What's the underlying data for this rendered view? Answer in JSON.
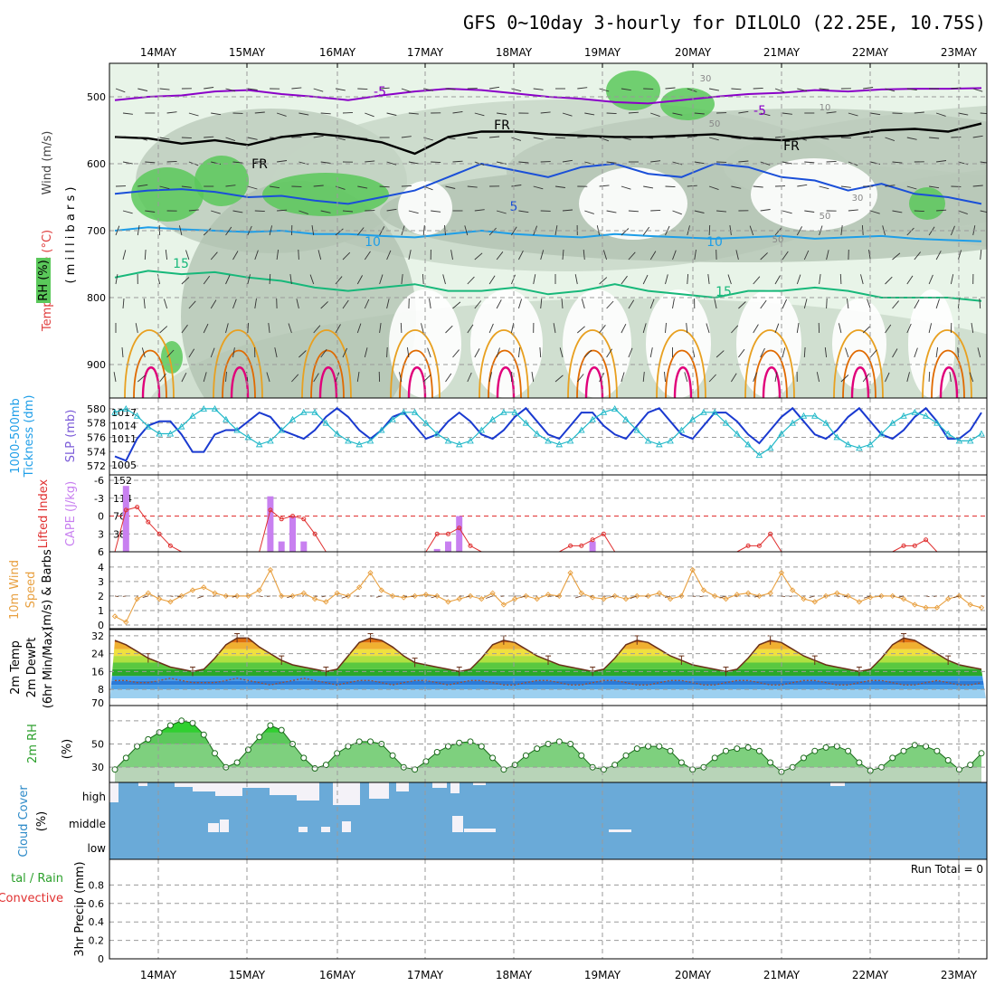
{
  "title": "GFS 0~10day 3-hourly for DILOLO (22.25E, 10.75S)",
  "date_labels": [
    "14MAY",
    "15MAY",
    "16MAY",
    "17MAY",
    "18MAY",
    "19MAY",
    "20MAY",
    "21MAY",
    "22MAY",
    "23MAY"
  ],
  "colors": {
    "purple": "#8a00c8",
    "black": "#000000",
    "blue": "#1a4fd8",
    "skyblue": "#1e9ee8",
    "green_t": "#17b87a",
    "orange": "#e8a020",
    "dorange": "#e06a00",
    "magenta": "#e0007a",
    "rh_light": "#e8f4e8",
    "rh_mid": "#b8c8b8",
    "rh_green": "#5ac85a",
    "cloud": "#6aaad8",
    "cape": "#c880f0",
    "li": "#e03030",
    "wind10": "#e8a040",
    "slp": "#1a3ad0",
    "thick": "#20b8c8",
    "rh2m": "#5cc85c"
  },
  "chart_data": [
    {
      "panel": "upper_air",
      "type": "area",
      "ylabel": "(millibars)",
      "side_labels": [
        "Wind (m/s)",
        "Temperature (°C)",
        "RH (%)"
      ],
      "y_ticks": [
        500,
        600,
        700,
        800,
        900
      ],
      "ylim": [
        450,
        950
      ],
      "contour_labels": {
        "temp_minus5": "-5",
        "freezing": "FR",
        "temp_5": "5",
        "temp_10": "10",
        "temp_15": "15",
        "rh_30": "30",
        "rh_50": "50",
        "rh_10": "10"
      },
      "series": [
        {
          "name": "-5C isotherm",
          "level_mb": [
            505,
            500,
            498,
            492,
            490,
            496,
            500,
            505,
            498,
            492,
            488,
            490,
            495,
            500,
            503,
            508,
            510,
            505,
            500,
            496,
            494,
            490,
            492,
            489,
            488,
            488,
            487
          ]
        },
        {
          "name": "FR isotherm",
          "level_mb": [
            560,
            562,
            570,
            565,
            572,
            560,
            555,
            560,
            568,
            585,
            560,
            552,
            552,
            556,
            558,
            560,
            560,
            558,
            556,
            562,
            565,
            560,
            558,
            550,
            548,
            552,
            540
          ]
        },
        {
          "name": "5C isotherm",
          "level_mb": [
            645,
            640,
            638,
            642,
            650,
            648,
            655,
            660,
            650,
            640,
            620,
            600,
            610,
            620,
            605,
            600,
            615,
            620,
            600,
            605,
            620,
            625,
            640,
            630,
            645,
            650,
            660
          ]
        },
        {
          "name": "10C isotherm",
          "level_mb": [
            700,
            695,
            698,
            700,
            702,
            700,
            705,
            705,
            708,
            710,
            705,
            700,
            705,
            708,
            710,
            705,
            708,
            710,
            712,
            710,
            708,
            712,
            710,
            708,
            712,
            714,
            716
          ]
        },
        {
          "name": "15C isotherm",
          "level_mb": [
            770,
            760,
            765,
            762,
            770,
            775,
            785,
            790,
            785,
            780,
            790,
            790,
            785,
            795,
            790,
            780,
            790,
            795,
            800,
            790,
            790,
            785,
            790,
            800,
            800,
            800,
            805
          ]
        }
      ]
    },
    {
      "panel": "slp_thickness",
      "type": "line",
      "ylabel": "1000-500mb Thickness (dm)",
      "y2label": "SLP (mb)",
      "y_ticks_left": [
        572,
        574,
        576,
        578,
        580
      ],
      "y_ticks_right": [
        1005,
        1011,
        1014,
        1017
      ],
      "series": [
        {
          "name": "SLP",
          "values": [
            1007,
            1006,
            1011,
            1014,
            1015,
            1015,
            1012,
            1008,
            1008,
            1012,
            1013,
            1013,
            1015,
            1017,
            1016,
            1013,
            1012,
            1011,
            1013,
            1016,
            1018,
            1016,
            1013,
            1011,
            1013,
            1016,
            1017,
            1014,
            1011,
            1012,
            1015,
            1017,
            1015,
            1012,
            1011,
            1013,
            1016,
            1018,
            1015,
            1012,
            1011,
            1014,
            1017,
            1017,
            1014,
            1012,
            1011,
            1014,
            1017,
            1018,
            1015,
            1012,
            1011,
            1014,
            1017,
            1017,
            1015,
            1012,
            1010,
            1013,
            1016,
            1018,
            1015,
            1012,
            1011,
            1013,
            1016,
            1018,
            1015,
            1012,
            1011,
            1013,
            1016,
            1018,
            1015,
            1011,
            1011,
            1013,
            1017
          ]
        },
        {
          "name": "Thickness",
          "values": [
            579.5,
            580,
            579,
            577.5,
            576.5,
            576.5,
            577.5,
            579,
            580,
            580,
            578.5,
            577,
            576,
            575,
            575.5,
            577,
            578.5,
            579.5,
            579.5,
            578,
            576.5,
            575.5,
            575,
            575.5,
            577,
            578.5,
            579.5,
            579.5,
            578,
            576.5,
            575.5,
            575,
            575.5,
            577,
            578.5,
            579.5,
            579.5,
            578,
            576.5,
            575.5,
            575,
            575.5,
            577,
            578.5,
            579.5,
            580,
            578.5,
            577,
            575.5,
            575,
            575.5,
            577,
            578.5,
            579.5,
            579.5,
            578,
            576.5,
            575,
            573.5,
            574.5,
            576.5,
            578,
            579,
            579,
            578,
            576,
            575,
            574.5,
            575,
            576.5,
            578,
            579,
            579.5,
            579,
            578,
            576.5,
            575.5,
            575.5,
            576.5
          ]
        }
      ]
    },
    {
      "panel": "li_cape",
      "type": "bar",
      "ylabel": "Lifted Index",
      "y2label": "CAPE (J/kg)",
      "y_ticks_left": [
        -6,
        -3,
        0,
        3,
        6
      ],
      "y_ticks_right": [
        38,
        76,
        114,
        152
      ],
      "cape_values": [
        0,
        140,
        0,
        0,
        0,
        0,
        0,
        0,
        0,
        0,
        0,
        0,
        0,
        0,
        118,
        22,
        76,
        22,
        0,
        0,
        0,
        0,
        0,
        0,
        0,
        0,
        0,
        0,
        0,
        6,
        22,
        76,
        0,
        0,
        0,
        0,
        0,
        0,
        0,
        0,
        0,
        0,
        0,
        22,
        0,
        0,
        0,
        0,
        0,
        0,
        0,
        0,
        0,
        0,
        0,
        0,
        0,
        0,
        0,
        0,
        0,
        0,
        0,
        0,
        0,
        0,
        0,
        0,
        0,
        0,
        0,
        0,
        0,
        0,
        0,
        0,
        0,
        0,
        0
      ],
      "li_values": [
        6,
        -1,
        -1.5,
        1,
        3,
        5,
        6,
        6,
        6,
        6,
        6,
        6,
        6,
        6,
        -1,
        0.5,
        0,
        0.5,
        3,
        6,
        6,
        6,
        6,
        6,
        6,
        6,
        6,
        6,
        6,
        3,
        3,
        2,
        5,
        6,
        6,
        6,
        6,
        6,
        6,
        6,
        6,
        5,
        5,
        4,
        3,
        6,
        6,
        6,
        6,
        6,
        6,
        6,
        6,
        6,
        6,
        6,
        6,
        5,
        5,
        3,
        6,
        6,
        6,
        6,
        6,
        6,
        6,
        6,
        6,
        6,
        6,
        5,
        5,
        4,
        6,
        6,
        6,
        6,
        6
      ]
    },
    {
      "panel": "wind10m",
      "type": "line",
      "ylabel": "10m Wind Speed (m/s) & Barbs",
      "y_ticks": [
        0,
        1,
        2,
        3,
        4
      ],
      "ylim": [
        0,
        5
      ],
      "values": [
        0.6,
        0.2,
        1.8,
        2.2,
        1.8,
        1.6,
        2.0,
        2.4,
        2.6,
        2.2,
        2.0,
        2.0,
        2.0,
        2.4,
        3.8,
        2.0,
        2.0,
        2.2,
        1.8,
        1.6,
        2.2,
        2.0,
        2.6,
        3.6,
        2.4,
        2.0,
        1.9,
        2.0,
        2.1,
        2.0,
        1.6,
        1.8,
        2.0,
        1.8,
        2.2,
        1.4,
        1.8,
        2.0,
        1.8,
        2.1,
        2.0,
        3.6,
        2.2,
        1.9,
        1.8,
        2.0,
        1.8,
        2.0,
        2.0,
        2.2,
        1.8,
        2.0,
        3.8,
        2.4,
        2.0,
        1.8,
        2.1,
        2.2,
        2.0,
        2.2,
        3.6,
        2.4,
        1.8,
        1.6,
        2.0,
        2.2,
        2.0,
        1.6,
        1.9,
        2.0,
        2.0,
        1.8,
        1.4,
        1.2,
        1.2,
        1.8,
        2.0,
        1.4,
        1.2
      ]
    },
    {
      "panel": "temp2m",
      "type": "area",
      "ylabel": "2m Temp 2m DewPt (6hr Min/Max)",
      "y_ticks": [
        8,
        16,
        24,
        32
      ],
      "extra_tick": "70",
      "temp_values": [
        30,
        28,
        25,
        22,
        20,
        18,
        17,
        16,
        17,
        22,
        28,
        31,
        31,
        27,
        24,
        21,
        19,
        18,
        17,
        16,
        17,
        23,
        29,
        31,
        30,
        27,
        23,
        20,
        19,
        18,
        17,
        16,
        17,
        22,
        28,
        30,
        29,
        26,
        23,
        21,
        19,
        18,
        17,
        16,
        17,
        22,
        28,
        30,
        29,
        26,
        23,
        21,
        19,
        18,
        17,
        16,
        17,
        22,
        28,
        30,
        29,
        26,
        23,
        21,
        19,
        18,
        17,
        16,
        17,
        22,
        28,
        31,
        30,
        27,
        24,
        21,
        19,
        18,
        17
      ],
      "dew_values": [
        12,
        12,
        11,
        11,
        12,
        13,
        12,
        11,
        11,
        11,
        12,
        13,
        12,
        11,
        10,
        11,
        12,
        13,
        12,
        11,
        10,
        11,
        12,
        12,
        11,
        10,
        11,
        12,
        12,
        11,
        10,
        11,
        12,
        12,
        11,
        10,
        10,
        11,
        12,
        12,
        11,
        10,
        10,
        11,
        12,
        12,
        11,
        10,
        10,
        11,
        12,
        12,
        11,
        10,
        10,
        11,
        12,
        12,
        11,
        10,
        10,
        11,
        12,
        12,
        11,
        10,
        10,
        11,
        12,
        12,
        11,
        10,
        10,
        11,
        12,
        11,
        10,
        10,
        11
      ]
    },
    {
      "panel": "rh2m",
      "type": "area",
      "ylabel": "2m RH (%)",
      "y_ticks": [
        30,
        50,
        70
      ],
      "ylim": [
        20,
        80
      ],
      "values": [
        28,
        38,
        48,
        54,
        60,
        66,
        70,
        68,
        58,
        42,
        30,
        34,
        45,
        56,
        66,
        62,
        50,
        38,
        29,
        32,
        42,
        48,
        52,
        52,
        50,
        40,
        30,
        28,
        35,
        43,
        48,
        51,
        52,
        48,
        38,
        28,
        32,
        40,
        46,
        50,
        52,
        50,
        40,
        30,
        28,
        32,
        40,
        46,
        48,
        48,
        44,
        34,
        28,
        30,
        38,
        44,
        46,
        47,
        44,
        34,
        26,
        30,
        38,
        44,
        47,
        48,
        44,
        34,
        27,
        30,
        38,
        44,
        49,
        48,
        44,
        36,
        28,
        32,
        42
      ]
    },
    {
      "panel": "cloud",
      "type": "area",
      "ylabel": "Cloud Cover (%)",
      "labels": [
        "high",
        "middle",
        "low"
      ]
    },
    {
      "panel": "precip",
      "type": "bar",
      "ylabel": "3hr Precip (mm)",
      "legend": [
        "Total / Rain",
        "Convective"
      ],
      "y_ticks": [
        0,
        0.2,
        0.4,
        0.6,
        0.8
      ],
      "ylim": [
        0,
        1
      ],
      "run_total": "Run Total = 0",
      "values": []
    }
  ],
  "labels": {
    "wind": "Wind (m/s)",
    "temperature": "Temperature (°C)",
    "rh": "RH (%)",
    "millibars": "( m i l l i b a r s )",
    "thickness1": "1000-500mb",
    "thickness2": "Tickness (dm)",
    "slp": "SLP (mb)",
    "lifted": "Lifted Index",
    "cape": "CAPE (J/kg)",
    "wind10_1": "10m Wind",
    "wind10_2": "Speed",
    "wind10_3": "(m/s) & Barbs",
    "temp1": "2m Temp",
    "temp2": "2m DewPt",
    "temp3": "(6hr Min/Max)",
    "rh2m1": "2m RH",
    "rh2m2": "(%)",
    "cloud1": "Cloud Cover",
    "cloud2": "(%)",
    "precip1": "tal / Rain",
    "precip2": "Convective",
    "precip3": "3hr Precip (mm)"
  }
}
